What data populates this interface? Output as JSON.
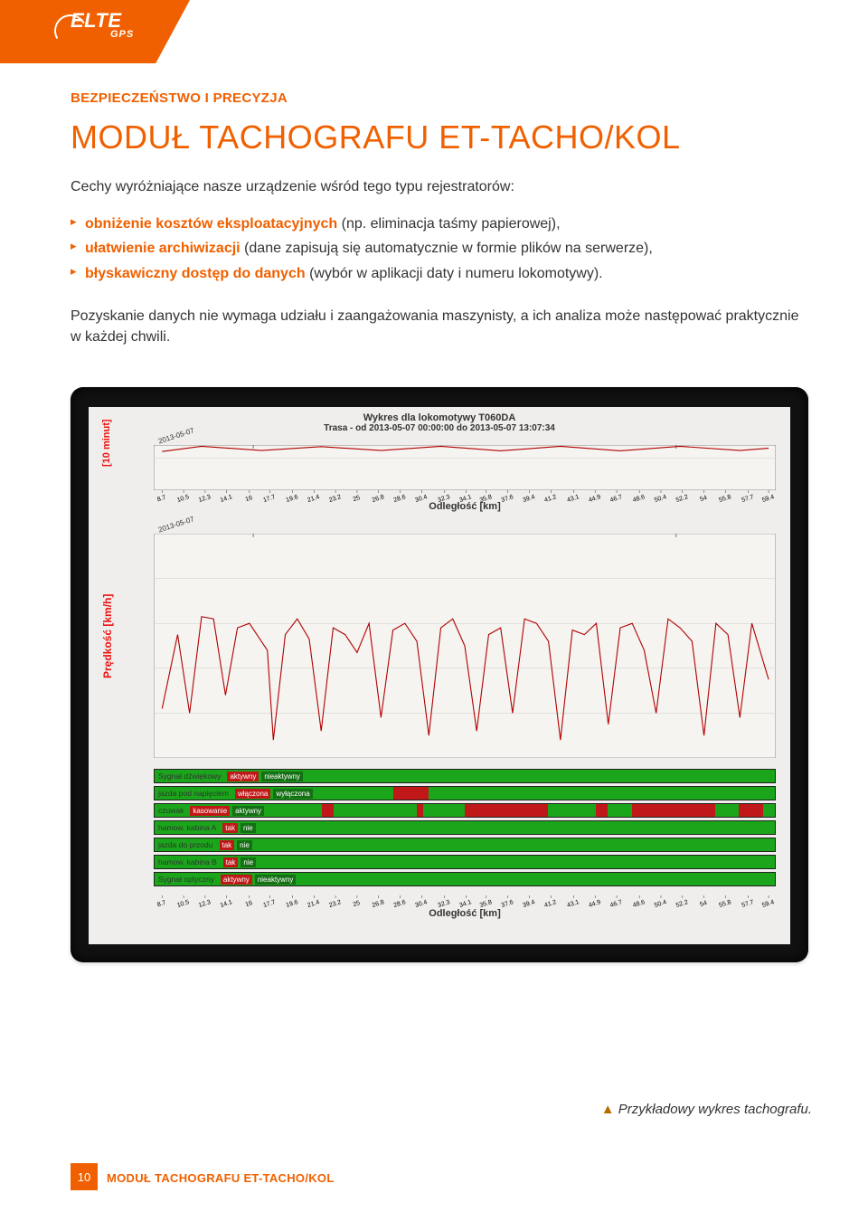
{
  "brand": {
    "name": "ELTE",
    "sub": "GPS"
  },
  "eyebrow": "BEZPIECZEŃSTWO I PRECYZJA",
  "title": "MODUŁ TACHOGRAFU ET-TACHO/KOL",
  "lead": "Cechy wyróżniające nasze urządzenie wśród tego typu rejestratorów:",
  "bullets": [
    {
      "bold": "obniżenie kosztów eksploatacyjnych",
      "rest": " (np. eliminacja taśmy papierowej),"
    },
    {
      "bold": "ułatwienie archiwizacji",
      "rest": " (dane zapisują się automatycznie w formie plików na serwerze),"
    },
    {
      "bold": "błyskawiczny dostęp do danych",
      "rest": " (wybór w aplikacji daty i numeru lokomotywy)."
    }
  ],
  "para": "Pozyskanie danych nie wymaga udziału i zaangażowania maszynisty, a ich analiza może następować praktycznie w każdej chwili.",
  "chart": {
    "title": "Wykres dla lokomotywy T060DA",
    "subtitle": "Trasa - od 2013-05-07 00:00:00 do 2013-05-07 13:07:34",
    "date_label": "2013-05-07",
    "xlabel": "Odległość [km]",
    "panel1": {
      "ylabel": "[10 minut]",
      "color": "#b00000",
      "background": "#f5f4f1",
      "xlim": [
        8,
        60
      ],
      "ylim": [
        0,
        14
      ],
      "yticks": [
        10
      ],
      "series": [
        {
          "x": 8.7,
          "y": 12
        },
        {
          "x": 12,
          "y": 13.6
        },
        {
          "x": 17,
          "y": 12.3
        },
        {
          "x": 22,
          "y": 13.5
        },
        {
          "x": 27,
          "y": 12.3
        },
        {
          "x": 32,
          "y": 13.6
        },
        {
          "x": 37,
          "y": 12.2
        },
        {
          "x": 42,
          "y": 13.6
        },
        {
          "x": 47,
          "y": 12.2
        },
        {
          "x": 52,
          "y": 13.6
        },
        {
          "x": 57,
          "y": 12.3
        },
        {
          "x": 59.4,
          "y": 13
        }
      ],
      "inner_ticks": [
        "12",
        "13"
      ],
      "xticks": [
        8.7,
        10.5,
        12.3,
        14.1,
        16,
        17.7,
        19.6,
        21.4,
        23.2,
        25,
        26.8,
        28.6,
        30.4,
        32.3,
        34.1,
        35.8,
        37.6,
        39.4,
        41.2,
        43.1,
        44.9,
        46.7,
        48.6,
        50.4,
        52.2,
        54,
        55.8,
        57.7,
        59.4
      ]
    },
    "panel2": {
      "ylabel": "Prędkość [km/h]",
      "color": "#b00000",
      "background": "#f5f4f1",
      "xlim": [
        8,
        60
      ],
      "ylim": [
        0,
        100
      ],
      "yticks": [
        0,
        20,
        40,
        60,
        80,
        100
      ],
      "series": [
        {
          "x": 8.7,
          "y": 22
        },
        {
          "x": 10,
          "y": 55
        },
        {
          "x": 11,
          "y": 20
        },
        {
          "x": 12,
          "y": 63
        },
        {
          "x": 13,
          "y": 62
        },
        {
          "x": 14,
          "y": 28
        },
        {
          "x": 15,
          "y": 58
        },
        {
          "x": 16,
          "y": 60
        },
        {
          "x": 17.5,
          "y": 48
        },
        {
          "x": 18,
          "y": 8
        },
        {
          "x": 19,
          "y": 55
        },
        {
          "x": 20,
          "y": 62
        },
        {
          "x": 21,
          "y": 53
        },
        {
          "x": 22,
          "y": 12
        },
        {
          "x": 23,
          "y": 58
        },
        {
          "x": 24,
          "y": 55
        },
        {
          "x": 25,
          "y": 47
        },
        {
          "x": 26,
          "y": 60
        },
        {
          "x": 27,
          "y": 18
        },
        {
          "x": 28,
          "y": 57
        },
        {
          "x": 29,
          "y": 60
        },
        {
          "x": 30,
          "y": 52
        },
        {
          "x": 31,
          "y": 10
        },
        {
          "x": 32,
          "y": 58
        },
        {
          "x": 33,
          "y": 62
        },
        {
          "x": 34,
          "y": 50
        },
        {
          "x": 35,
          "y": 12
        },
        {
          "x": 36,
          "y": 55
        },
        {
          "x": 37,
          "y": 58
        },
        {
          "x": 38,
          "y": 20
        },
        {
          "x": 39,
          "y": 62
        },
        {
          "x": 40,
          "y": 60
        },
        {
          "x": 41,
          "y": 52
        },
        {
          "x": 42,
          "y": 8
        },
        {
          "x": 43,
          "y": 57
        },
        {
          "x": 44,
          "y": 55
        },
        {
          "x": 45,
          "y": 60
        },
        {
          "x": 46,
          "y": 15
        },
        {
          "x": 47,
          "y": 58
        },
        {
          "x": 48,
          "y": 60
        },
        {
          "x": 49,
          "y": 48
        },
        {
          "x": 50,
          "y": 20
        },
        {
          "x": 51,
          "y": 62
        },
        {
          "x": 52,
          "y": 58
        },
        {
          "x": 53,
          "y": 52
        },
        {
          "x": 54,
          "y": 10
        },
        {
          "x": 55,
          "y": 60
        },
        {
          "x": 56,
          "y": 55
        },
        {
          "x": 57,
          "y": 18
        },
        {
          "x": 58,
          "y": 60
        },
        {
          "x": 59.4,
          "y": 35
        }
      ],
      "inner_ticks": [
        "12",
        "13"
      ],
      "xticks": [
        8.7,
        10.5,
        12.3,
        14.1,
        16,
        17.7,
        19.6,
        21.4,
        23.2,
        25,
        26.8,
        28.6,
        30.4,
        32.3,
        34.1,
        35.8,
        37.6,
        39.4,
        41.2,
        43.1,
        44.9,
        46.7,
        48.6,
        50.4,
        52.2,
        54,
        55.8,
        57.7,
        59.4
      ]
    },
    "status": {
      "rows": [
        {
          "label": "Sygnał dźwiękowy",
          "tag_a": "aktywny",
          "tag_b": "nieaktywny",
          "segs": []
        },
        {
          "label": "jazda pod napięciem",
          "tag_a": "włączona",
          "tag_b": "wyłączona",
          "segs": [
            [
              28,
              31
            ]
          ]
        },
        {
          "label": "czuwak",
          "tag_a": "kasowanie",
          "tag_b": "aktywny",
          "segs": [
            [
              22,
              23
            ],
            [
              30,
              30.5
            ],
            [
              34,
              41
            ],
            [
              45,
              46
            ],
            [
              48,
              55
            ],
            [
              57,
              59
            ]
          ]
        },
        {
          "label": "hamow. kabina A",
          "tag_a": "tak",
          "tag_b": "nie",
          "segs": []
        },
        {
          "label": "jazda do przodu",
          "tag_a": "tak",
          "tag_b": "nie",
          "segs": []
        },
        {
          "label": "hamow. kabina B",
          "tag_a": "tak",
          "tag_b": "nie",
          "segs": []
        },
        {
          "label": "Sygnał optyczny",
          "tag_a": "aktywny",
          "tag_b": "nieaktywny",
          "segs": []
        }
      ],
      "track_color": "#1aa51a",
      "seg_color": "#c01818"
    }
  },
  "caption": "Przykładowy wykres tachografu.",
  "footer": {
    "page": "10",
    "title": "MODUŁ TACHOGRAFU ET-TACHO/KOL"
  }
}
